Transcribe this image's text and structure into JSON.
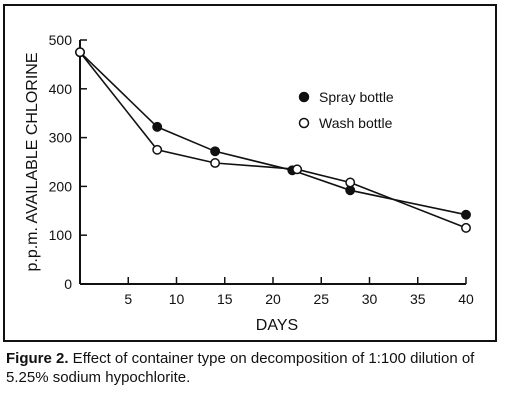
{
  "chart_data": {
    "type": "line",
    "xlabel": "DAYS",
    "ylabel": "p.p.m. AVAILABLE CHLORINE",
    "xlim": [
      0,
      40
    ],
    "ylim": [
      0,
      500
    ],
    "xticks": [
      5,
      10,
      15,
      20,
      25,
      30,
      35,
      40
    ],
    "yticks": [
      0,
      100,
      200,
      300,
      400,
      500
    ],
    "grid": false,
    "legend_position": "top-right",
    "series": [
      {
        "name": "Spray bottle",
        "marker": "filled-circle",
        "x": [
          0,
          8,
          14,
          22,
          28,
          40
        ],
        "y": [
          475,
          322,
          272,
          233,
          192,
          142
        ]
      },
      {
        "name": "Wash bottle",
        "marker": "open-circle",
        "x": [
          0,
          8,
          14,
          22.5,
          28,
          40
        ],
        "y": [
          475,
          275,
          248,
          235,
          208,
          115
        ]
      }
    ]
  },
  "caption": {
    "label": "Figure 2.",
    "text": " Effect of container type on decomposition of 1:100 dilution of 5.25% sodium hypochlorite."
  }
}
